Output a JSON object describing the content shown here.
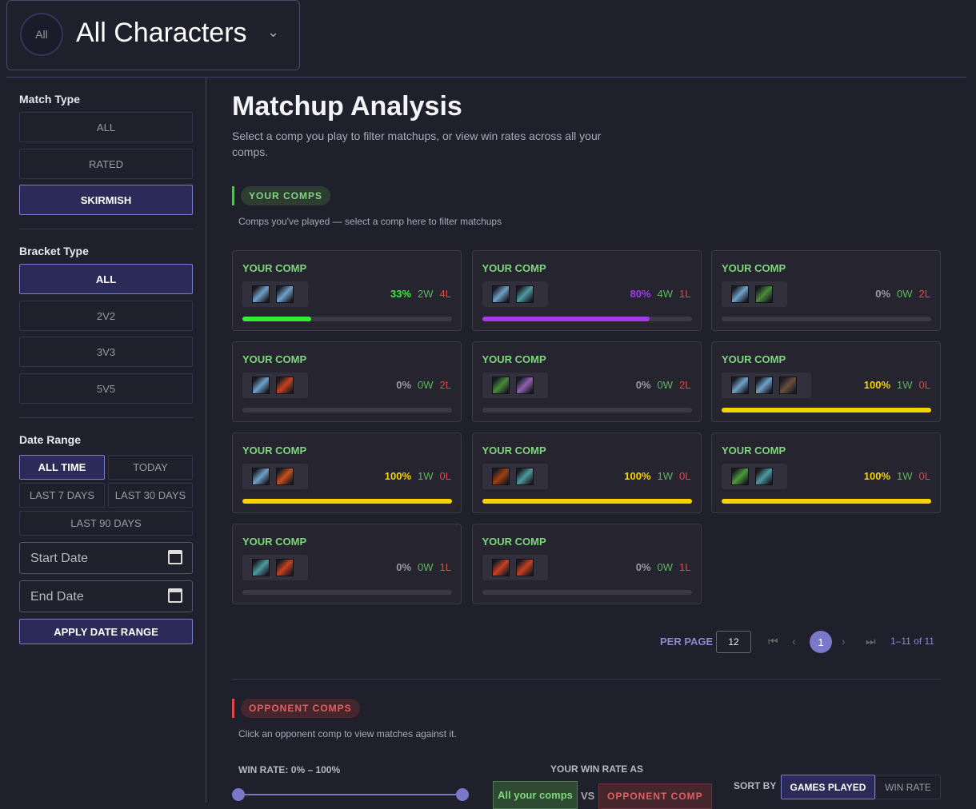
{
  "header": {
    "avatar": "All",
    "title": "All Characters"
  },
  "sidebar": {
    "match_type": {
      "label": "Match Type",
      "options": [
        "ALL",
        "RATED",
        "SKIRMISH"
      ],
      "selected": 2
    },
    "bracket_type": {
      "label": "Bracket Type",
      "options": [
        "ALL",
        "2V2",
        "3V3",
        "5V5"
      ],
      "selected": 0
    },
    "date_range": {
      "label": "Date Range",
      "options": [
        "ALL TIME",
        "TODAY",
        "LAST 7 DAYS",
        "LAST 30 DAYS",
        "LAST 90 DAYS"
      ],
      "selected": 0,
      "start_date": "Start Date",
      "end_date": "End Date",
      "apply": "APPLY DATE RANGE"
    }
  },
  "main": {
    "title": "Matchup Analysis",
    "subtitle": "Select a comp you play to filter matchups, or view win rates across all your comps.",
    "your_comps": {
      "badge": "YOUR COMPS",
      "note": "Comps you've played — select a comp here to filter matchups",
      "comps": [
        {
          "label": "YOUR COMP",
          "icons": [
            "#6fa0c8",
            "#6fa0c8"
          ],
          "win_rate": 33,
          "win_rate_label": "33%",
          "wins": "2W",
          "losses": "4L",
          "color": "#33ee33"
        },
        {
          "label": "YOUR COMP",
          "icons": [
            "#6fa0c8",
            "#4d9aa0"
          ],
          "win_rate": 80,
          "win_rate_label": "80%",
          "wins": "4W",
          "losses": "1L",
          "color": "#a23ce8"
        },
        {
          "label": "YOUR COMP",
          "icons": [
            "#6fa0c8",
            "#4a8a3a"
          ],
          "win_rate": 0,
          "win_rate_label": "0%",
          "wins": "0W",
          "losses": "2L",
          "color": "#9a9aa8"
        },
        {
          "label": "YOUR COMP",
          "icons": [
            "#6fa0c8",
            "#c84020"
          ],
          "win_rate": 0,
          "win_rate_label": "0%",
          "wins": "0W",
          "losses": "2L",
          "color": "#9a9aa8"
        },
        {
          "label": "YOUR COMP",
          "icons": [
            "#4a8a3a",
            "#9060b0"
          ],
          "win_rate": 0,
          "win_rate_label": "0%",
          "wins": "0W",
          "losses": "2L",
          "color": "#9a9aa8"
        },
        {
          "label": "YOUR COMP",
          "icons": [
            "#6fa0c8",
            "#6fa0c8",
            "#6a5040"
          ],
          "win_rate": 100,
          "win_rate_label": "100%",
          "wins": "1W",
          "losses": "0L",
          "color": "#f5d400"
        },
        {
          "label": "YOUR COMP",
          "icons": [
            "#6fa0c8",
            "#c8501a"
          ],
          "win_rate": 100,
          "win_rate_label": "100%",
          "wins": "1W",
          "losses": "0L",
          "color": "#f5d400"
        },
        {
          "label": "YOUR COMP",
          "icons": [
            "#a04010",
            "#4d9aa0"
          ],
          "win_rate": 100,
          "win_rate_label": "100%",
          "wins": "1W",
          "losses": "0L",
          "color": "#f5d400"
        },
        {
          "label": "YOUR COMP",
          "icons": [
            "#4a9a3a",
            "#4d9aa0"
          ],
          "win_rate": 100,
          "win_rate_label": "100%",
          "wins": "1W",
          "losses": "0L",
          "color": "#f5d400"
        },
        {
          "label": "YOUR COMP",
          "icons": [
            "#4d9aa0",
            "#c84020"
          ],
          "win_rate": 0,
          "win_rate_label": "0%",
          "wins": "0W",
          "losses": "1L",
          "color": "#9a9aa8"
        },
        {
          "label": "YOUR COMP",
          "icons": [
            "#c84020",
            "#c84020"
          ],
          "win_rate": 0,
          "win_rate_label": "0%",
          "wins": "0W",
          "losses": "1L",
          "color": "#9a9aa8"
        }
      ]
    },
    "pagination": {
      "per_page_label": "PER PAGE",
      "per_page": "12",
      "page": "1",
      "range": "1–11 of 11"
    },
    "opponent_comps": {
      "badge": "OPPONENT COMPS",
      "note": "Click an opponent comp to view matches against it.",
      "win_rate_filter": "WIN RATE: 0% – 100%",
      "your_win_rate_as": "YOUR WIN RATE AS",
      "all_your_comps": "All your comps",
      "vs": "VS",
      "opponent_comp": "OPPONENT COMP",
      "sort_by": "SORT BY",
      "sort_options": [
        "GAMES PLAYED",
        "WIN RATE"
      ],
      "sort_selected": 0
    }
  }
}
